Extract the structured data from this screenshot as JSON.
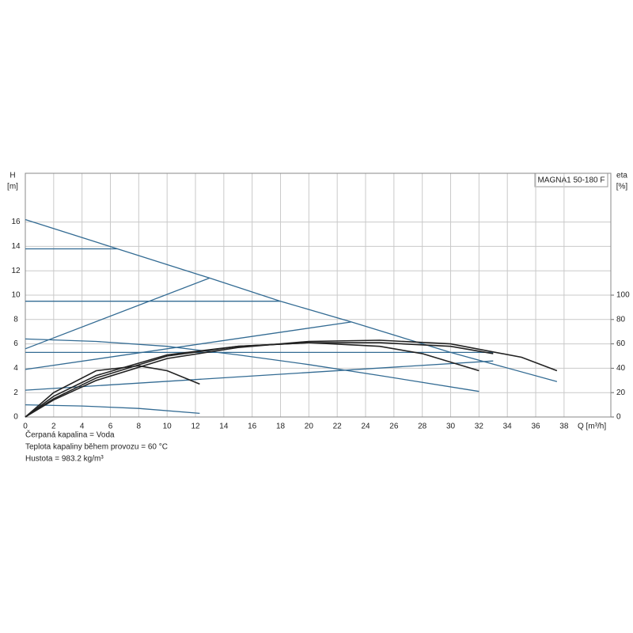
{
  "chart_data": {
    "type": "line",
    "title": "MAGNA1 50-180 F",
    "y_label": "H",
    "y_unit": "[m]",
    "y2_label": "eta",
    "y2_unit": "[%]",
    "x_label": "Q [m³/h]",
    "notes": [
      "Čerpaná kapalina = Voda",
      "Teplota kapaliny během provozu = 60 °C",
      "Hustota = 983.2 kg/m³"
    ],
    "xlim": [
      0,
      41.3
    ],
    "ylim": [
      0,
      20
    ],
    "y2lim": [
      0,
      200
    ],
    "xticks": [
      0,
      2,
      4,
      6,
      8,
      10,
      12,
      14,
      16,
      18,
      20,
      22,
      24,
      26,
      28,
      30,
      32,
      34,
      36,
      38
    ],
    "yticks": [
      0,
      2,
      4,
      6,
      8,
      10,
      12,
      14,
      16
    ],
    "y2ticks": [
      0,
      20,
      40,
      60,
      80,
      100
    ],
    "grid": true,
    "series": [
      {
        "color": "#336b93",
        "x": [
          0,
          6.5,
          13,
          18,
          23,
          30,
          37.5
        ],
        "values": [
          16.2,
          13.8,
          11.4,
          9.5,
          7.8,
          5.3,
          2.9
        ]
      },
      {
        "color": "#336b93",
        "x": [
          0,
          6.5
        ],
        "values": [
          13.8,
          13.8
        ]
      },
      {
        "color": "#336b93",
        "x": [
          0,
          18
        ],
        "values": [
          9.5,
          9.5
        ]
      },
      {
        "color": "#336b93",
        "x": [
          0,
          33
        ],
        "values": [
          5.3,
          5.3
        ]
      },
      {
        "color": "#336b93",
        "x": [
          0,
          13
        ],
        "values": [
          5.6,
          11.4
        ]
      },
      {
        "color": "#336b93",
        "x": [
          0,
          23
        ],
        "values": [
          3.9,
          7.8
        ]
      },
      {
        "color": "#336b93",
        "x": [
          0,
          33
        ],
        "values": [
          2.2,
          4.6
        ]
      },
      {
        "color": "#336b93",
        "x": [
          0,
          5,
          10,
          15,
          20,
          25,
          32
        ],
        "values": [
          6.4,
          6.2,
          5.8,
          5.1,
          4.3,
          3.4,
          2.1
        ]
      },
      {
        "color": "#336b93",
        "x": [
          0,
          4,
          8,
          12.3
        ],
        "values": [
          1.0,
          0.9,
          0.7,
          0.3
        ]
      },
      {
        "color": "#222222",
        "axis": "y2",
        "x": [
          0,
          2,
          5,
          10,
          15,
          20,
          25,
          30,
          35,
          37.5
        ],
        "values": [
          0,
          14,
          30,
          48,
          57,
          62,
          63,
          60,
          49,
          38
        ]
      },
      {
        "color": "#222222",
        "axis": "y2",
        "x": [
          0,
          2,
          5,
          10,
          15,
          20,
          25,
          30,
          33
        ],
        "values": [
          0,
          17,
          34,
          51,
          58,
          61,
          61,
          58,
          52
        ]
      },
      {
        "color": "#222222",
        "axis": "y2",
        "x": [
          0,
          2,
          5,
          10,
          15,
          20,
          25,
          28,
          32
        ],
        "values": [
          0,
          15,
          32,
          50,
          58,
          61,
          58,
          52,
          38
        ]
      },
      {
        "color": "#222222",
        "axis": "y2",
        "x": [
          0,
          2,
          5,
          8,
          10,
          12.3
        ],
        "values": [
          0,
          20,
          38,
          42,
          38,
          27
        ]
      }
    ]
  }
}
